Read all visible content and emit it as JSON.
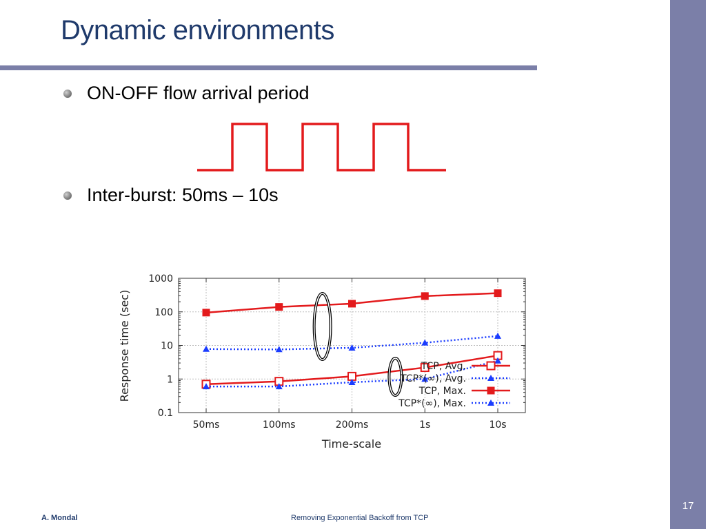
{
  "slide": {
    "title": "Dynamic environments",
    "bullets": [
      "ON-OFF flow arrival period",
      "Inter-burst: 50ms – 10s"
    ],
    "footer_author": "A. Mondal",
    "footer_title": "Removing Exponential Backoff from TCP",
    "page_number": "17"
  },
  "colors": {
    "accent_band": "#7b7fa8",
    "title": "#1f3a6b",
    "tcp": "#e31a1c",
    "tcp_star": "#1a3cff"
  },
  "chart_data": {
    "type": "line",
    "title": "",
    "xlabel": "Time-scale",
    "ylabel": "Response time (sec)",
    "yscale": "log",
    "ylim": [
      0.1,
      1000
    ],
    "yticks": [
      "0.1",
      "1",
      "10",
      "100",
      "1000"
    ],
    "categories": [
      "50ms",
      "100ms",
      "200ms",
      "1s",
      "10s"
    ],
    "grid": true,
    "legend_position": "lower-right",
    "series": [
      {
        "name": "TCP, Avg.",
        "values": [
          0.7,
          0.85,
          1.2,
          2.2,
          5.0
        ],
        "color": "#e31a1c",
        "marker": "open-square",
        "line": "solid"
      },
      {
        "name": "TCP*(∞), Avg.",
        "values": [
          0.6,
          0.6,
          0.8,
          1.0,
          3.5
        ],
        "color": "#1a3cff",
        "marker": "triangle",
        "line": "dotted"
      },
      {
        "name": "TCP, Max.",
        "values": [
          95,
          140,
          175,
          295,
          360
        ],
        "color": "#e31a1c",
        "marker": "filled-square",
        "line": "solid"
      },
      {
        "name": "TCP*(∞), Max.",
        "values": [
          7.8,
          7.6,
          8.5,
          12,
          19
        ],
        "color": "#1a3cff",
        "marker": "triangle",
        "line": "dotted"
      }
    ],
    "annotations": [
      "ellipse around Max. curves between 100ms and 200ms",
      "ellipse around Avg. curves between 200ms and 1s"
    ]
  }
}
